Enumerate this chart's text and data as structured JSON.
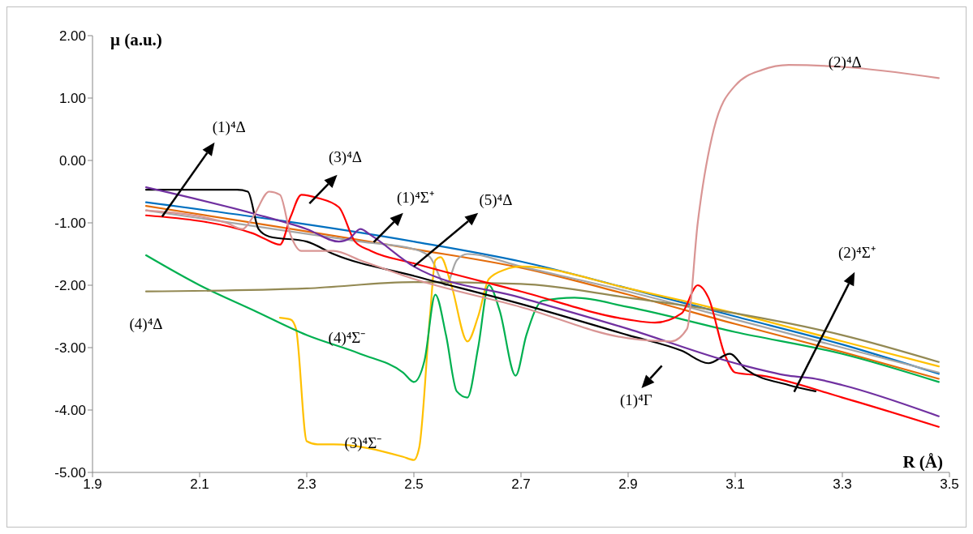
{
  "chart_data": {
    "type": "line",
    "xlabel": "R (Å)",
    "ylabel": "μ (a.u.)",
    "xlim": [
      1.9,
      3.5
    ],
    "xticks": [
      1.9,
      2.1,
      2.3,
      2.5,
      2.7,
      2.9,
      3.1,
      3.3,
      3.5
    ],
    "ylim": [
      -5,
      2
    ],
    "yticks": [
      {
        "value": -5,
        "label": "-5.00"
      },
      {
        "value": -4,
        "label": "-4.00"
      },
      {
        "value": -3,
        "label": "-3.00"
      },
      {
        "value": -2,
        "label": "-2.00"
      },
      {
        "value": -1,
        "label": "-1.00"
      },
      {
        "value": 0,
        "label": "0.00"
      },
      {
        "value": 1,
        "label": "1.00"
      },
      {
        "value": 2,
        "label": "2.00"
      }
    ],
    "marker": "none",
    "line_style": "solid",
    "series": [
      {
        "color": "#0070c0",
        "x": [
          2.0,
          2.5,
          2.7,
          2.9,
          3.1,
          3.3,
          3.48
        ],
        "values": [
          -0.67,
          -1.3,
          -1.62,
          -2.05,
          -2.5,
          -2.95,
          -3.42
        ]
      },
      {
        "color": "#e46c0a",
        "x": [
          2.0,
          2.5,
          2.7,
          2.9,
          3.1,
          3.3,
          3.48
        ],
        "values": [
          -0.73,
          -1.42,
          -1.72,
          -2.15,
          -2.62,
          -3.07,
          -3.5
        ]
      },
      {
        "color": "#a6a6a6",
        "x": [
          2.0,
          2.2,
          2.4,
          2.5,
          2.53,
          2.56,
          2.58,
          2.6,
          2.7,
          2.9,
          3.1,
          3.3,
          3.48
        ],
        "values": [
          -0.8,
          -1.05,
          -1.3,
          -1.42,
          -1.55,
          -2.0,
          -1.6,
          -1.5,
          -1.7,
          -2.1,
          -2.55,
          -3.0,
          -3.4
        ]
      },
      {
        "color": "#ffc000",
        "x": [
          2.25,
          2.27,
          2.28,
          2.3,
          2.32,
          2.35,
          2.48,
          2.5,
          2.51,
          2.53,
          2.54,
          2.55,
          2.57,
          2.6,
          2.62,
          2.64,
          2.67,
          2.7,
          2.9,
          3.1,
          3.3,
          3.48
        ],
        "values": [
          -2.52,
          -2.55,
          -2.7,
          -4.5,
          -4.55,
          -4.55,
          -4.75,
          -4.8,
          -4.6,
          -2.5,
          -1.6,
          -1.55,
          -2.0,
          -2.9,
          -2.5,
          -1.9,
          -1.75,
          -1.7,
          -2.05,
          -2.45,
          -2.9,
          -3.3
        ]
      },
      {
        "color": "#00b050",
        "x": [
          2.0,
          2.1,
          2.2,
          2.3,
          2.4,
          2.48,
          2.5,
          2.52,
          2.54,
          2.56,
          2.58,
          2.6,
          2.62,
          2.64,
          2.66,
          2.69,
          2.71,
          2.74,
          2.8,
          2.9,
          3.1,
          3.3,
          3.48
        ],
        "values": [
          -1.52,
          -2.0,
          -2.4,
          -2.8,
          -3.1,
          -3.4,
          -3.55,
          -3.2,
          -2.15,
          -2.8,
          -3.7,
          -3.8,
          -3.0,
          -2.0,
          -2.4,
          -3.45,
          -2.8,
          -2.25,
          -2.2,
          -2.35,
          -2.75,
          -3.1,
          -3.55
        ]
      },
      {
        "color": "#938953",
        "x": [
          2.0,
          2.3,
          2.5,
          2.7,
          2.9,
          3.1,
          3.3,
          3.48
        ],
        "values": [
          -2.1,
          -2.05,
          -1.95,
          -1.98,
          -2.2,
          -2.45,
          -2.8,
          -3.23
        ]
      },
      {
        "color": "#ff0000",
        "x": [
          2.0,
          2.2,
          2.22,
          2.25,
          2.27,
          2.29,
          2.32,
          2.36,
          2.39,
          2.42,
          2.5,
          2.7,
          2.9,
          2.95,
          3.0,
          3.03,
          3.05,
          3.08,
          3.1,
          3.15,
          3.3,
          3.48
        ],
        "values": [
          -0.88,
          -1.17,
          -1.25,
          -1.35,
          -0.9,
          -0.55,
          -0.6,
          -0.75,
          -1.3,
          -1.45,
          -1.65,
          -2.1,
          -2.55,
          -2.6,
          -2.45,
          -2.0,
          -2.2,
          -3.1,
          -3.4,
          -3.45,
          -3.8,
          -4.27
        ]
      },
      {
        "color": "#000000",
        "x": [
          2.0,
          2.17,
          2.19,
          2.21,
          2.23,
          2.3,
          2.35,
          2.5,
          2.7,
          2.9,
          3.0,
          3.05,
          3.09,
          3.12,
          3.2,
          3.25
        ],
        "values": [
          -0.47,
          -0.47,
          -0.5,
          -1.1,
          -1.22,
          -1.3,
          -1.5,
          -1.85,
          -2.3,
          -2.8,
          -3.05,
          -3.25,
          -3.1,
          -3.35,
          -3.6,
          -3.7
        ]
      },
      {
        "color": "#7030a0",
        "x": [
          2.0,
          2.2,
          2.3,
          2.36,
          2.38,
          2.4,
          2.42,
          2.5,
          2.7,
          2.9,
          3.1,
          3.2,
          3.25,
          3.3,
          3.48
        ],
        "values": [
          -0.43,
          -0.85,
          -1.1,
          -1.3,
          -1.25,
          -1.1,
          -1.2,
          -1.7,
          -2.2,
          -2.7,
          -3.25,
          -3.45,
          -3.5,
          -3.6,
          -4.1
        ]
      },
      {
        "color": "#d99594",
        "x": [
          2.0,
          2.15,
          2.18,
          2.2,
          2.23,
          2.25,
          2.27,
          2.29,
          2.35,
          2.4,
          2.5,
          2.7,
          2.9,
          2.98,
          3.01,
          3.03,
          3.06,
          3.1,
          3.15,
          3.2,
          3.3,
          3.48
        ],
        "values": [
          -0.8,
          -1.0,
          -1.1,
          -0.9,
          -0.5,
          -0.55,
          -1.2,
          -1.45,
          -1.45,
          -1.6,
          -1.9,
          -2.35,
          -2.85,
          -2.9,
          -2.7,
          -1.0,
          0.5,
          1.2,
          1.45,
          1.53,
          1.5,
          1.32
        ]
      }
    ],
    "annotations": [
      {
        "text": "(1)⁴Δ",
        "x": 2.03,
        "y": -0.9
      },
      "(3)⁴Δ",
      "(1)⁴Σ⁺",
      {
        "text": "(5)⁴Δ",
        "x": 2.5,
        "y": -1.7
      },
      "(2)⁴Δ",
      "(2)⁴Σ⁺",
      "(4)⁴Δ",
      "(4)⁴Σ⁻",
      "(3)⁴Σ⁻",
      "(1)⁴Γ"
    ]
  }
}
